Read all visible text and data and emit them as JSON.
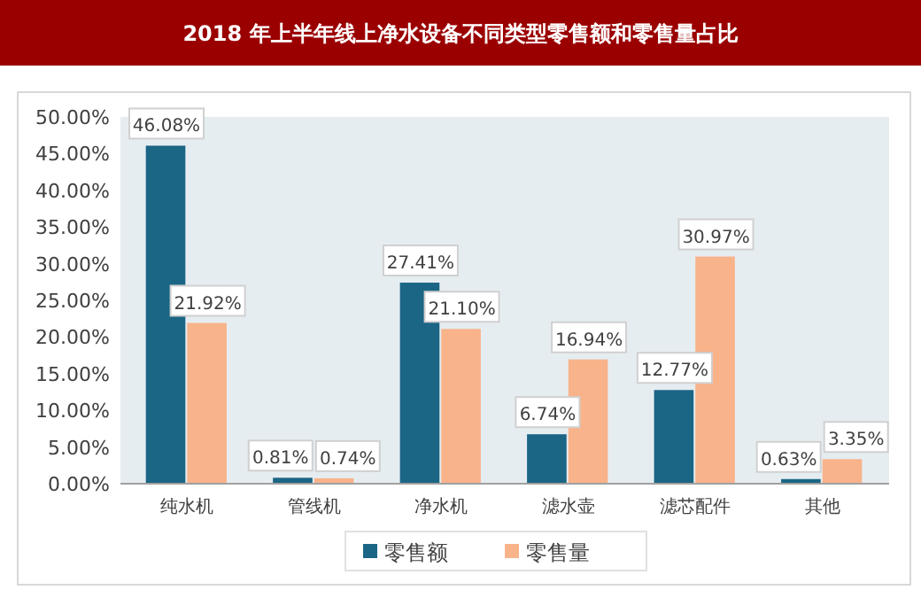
{
  "chart_data": {
    "type": "bar",
    "title": "2018 年上半年线上净水设备不同类型零售额和零售量占比",
    "categories": [
      "纯水机",
      "管线机",
      "净水机",
      "滤水壶",
      "滤芯配件",
      "其他"
    ],
    "series": [
      {
        "name": "零售额",
        "color": "#1b6585",
        "values": [
          46.08,
          0.81,
          27.41,
          6.74,
          12.77,
          0.63
        ],
        "value_labels": [
          "46.08%",
          "0.81%",
          "27.41%",
          "6.74%",
          "12.77%",
          "0.63%"
        ]
      },
      {
        "name": "零售量",
        "color": "#f8b38b",
        "values": [
          21.92,
          0.74,
          21.1,
          16.94,
          30.97,
          3.35
        ],
        "value_labels": [
          "21.92%",
          "0.74%",
          "21.10%",
          "16.94%",
          "30.97%",
          "3.35%"
        ]
      }
    ],
    "ylim": [
      0,
      50
    ],
    "yticks": [
      {
        "value": 0,
        "label": "0.00%"
      },
      {
        "value": 5,
        "label": "5.00%"
      },
      {
        "value": 10,
        "label": "10.00%"
      },
      {
        "value": 15,
        "label": "15.00%"
      },
      {
        "value": 20,
        "label": "20.00%"
      },
      {
        "value": 25,
        "label": "25.00%"
      },
      {
        "value": 30,
        "label": "30.00%"
      },
      {
        "value": 35,
        "label": "35.00%"
      },
      {
        "value": 40,
        "label": "40.00%"
      },
      {
        "value": 45,
        "label": "45.00%"
      },
      {
        "value": 50,
        "label": "50.00%"
      }
    ],
    "legend": "bottom"
  }
}
